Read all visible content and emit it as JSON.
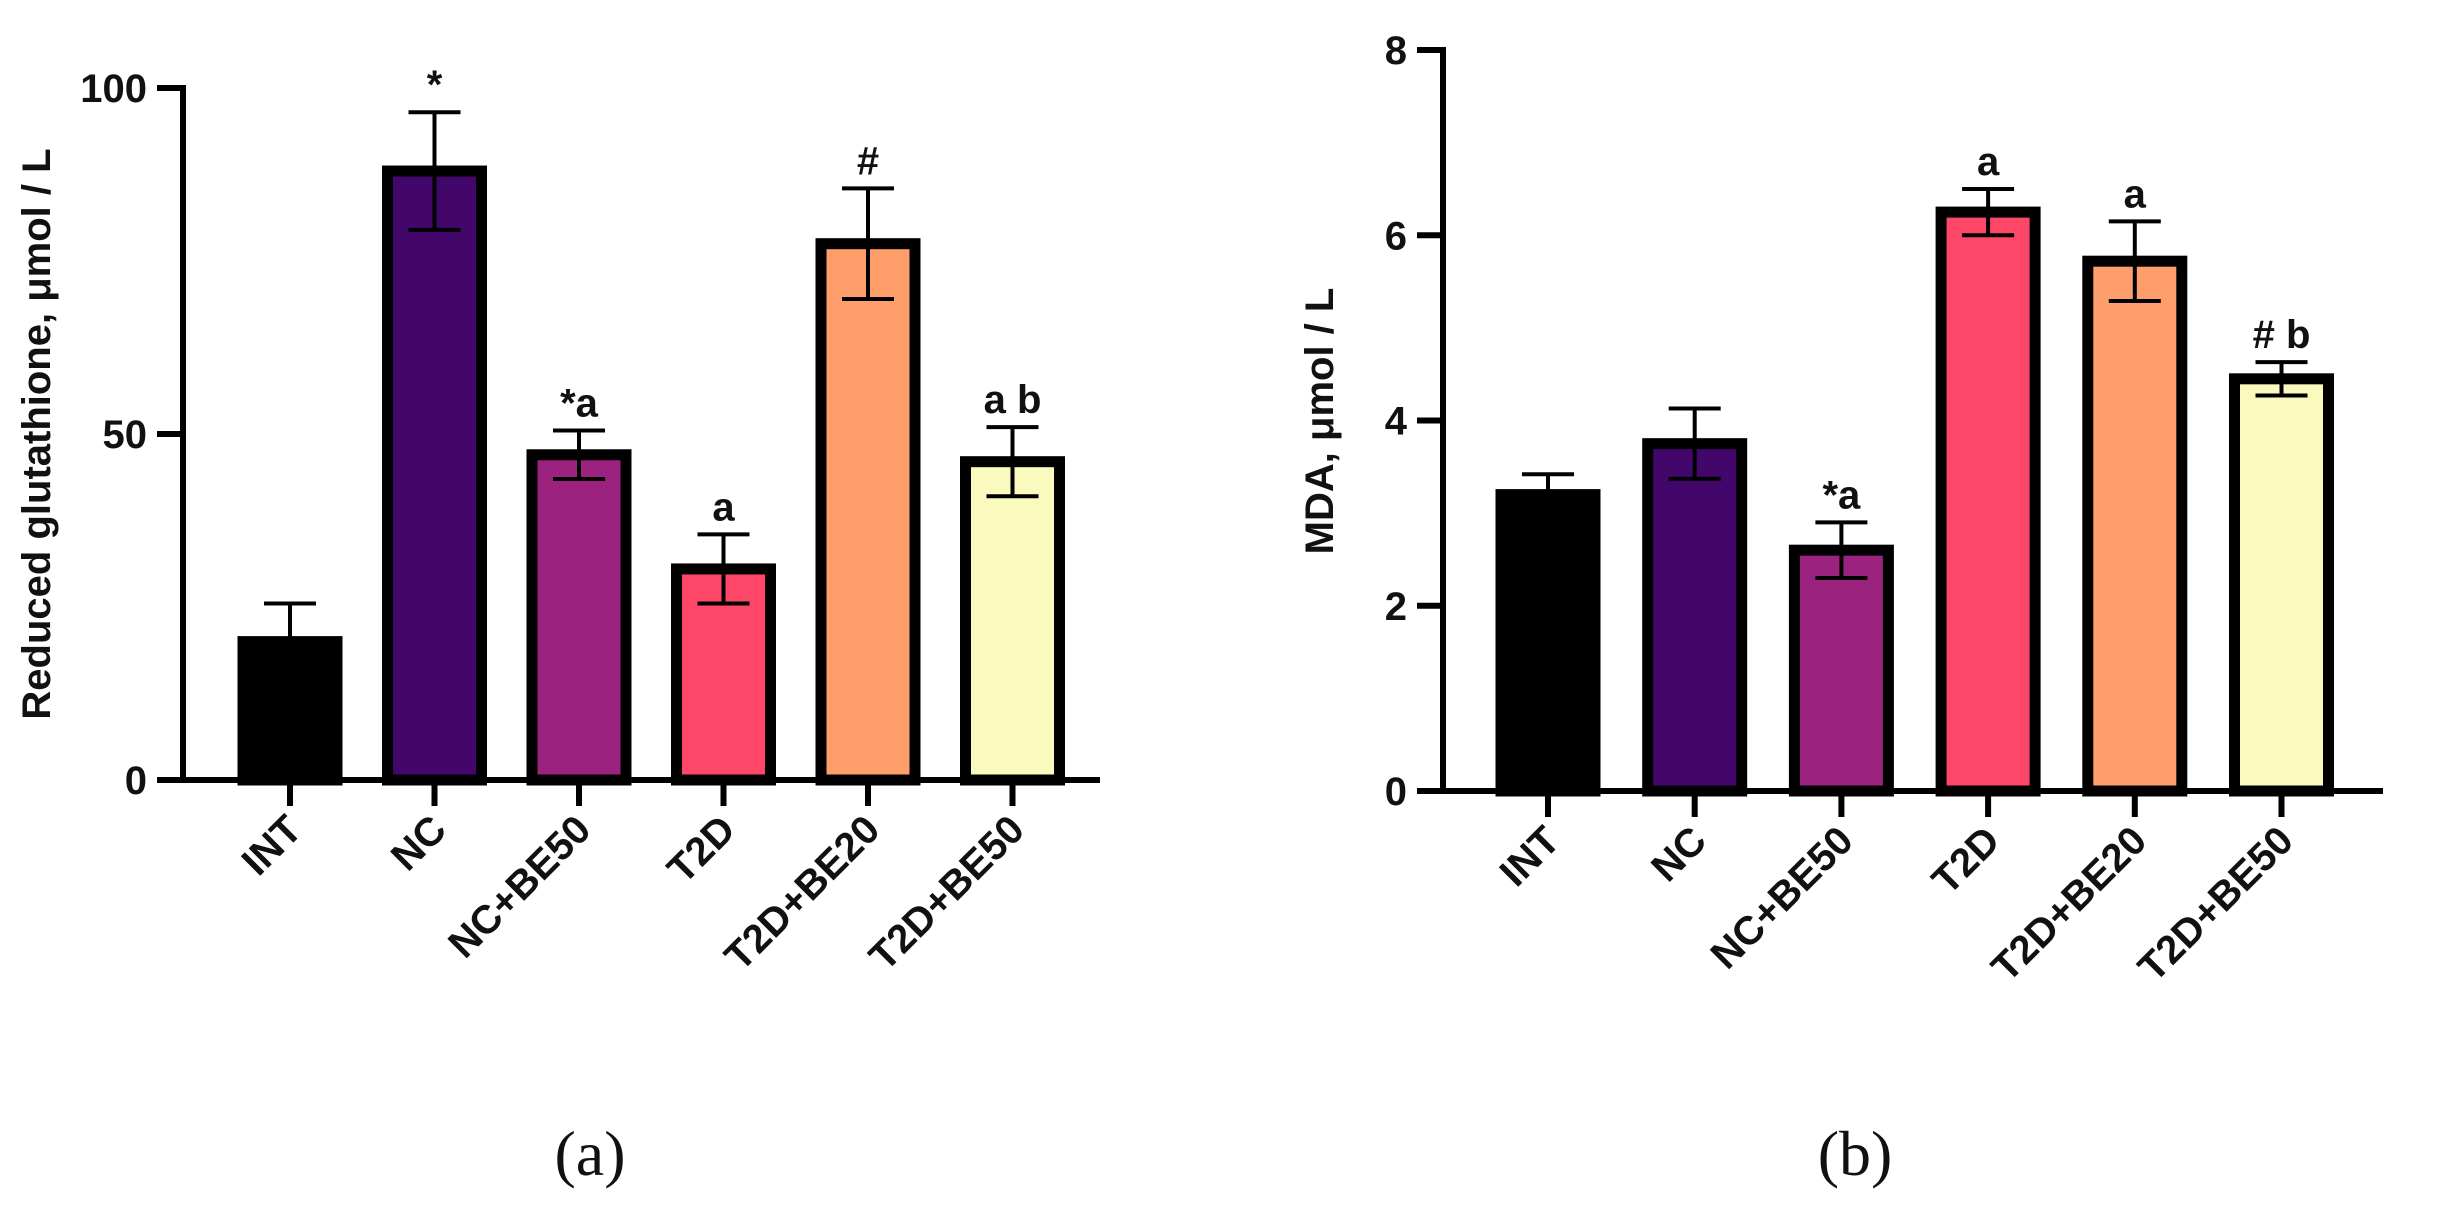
{
  "chart_data": [
    {
      "type": "bar",
      "panel": "(a)",
      "ylabel": "Reduced glutathione, μmol / L",
      "xlabel": "",
      "ylim": [
        0,
        100
      ],
      "yticks": [
        0,
        50,
        100
      ],
      "categories": [
        "INT",
        "NC",
        "NC+BE50",
        "T2D",
        "T2D+BE20",
        "T2D+BE50"
      ],
      "values": [
        20,
        88,
        47,
        30.5,
        77.5,
        46
      ],
      "errors": [
        5.5,
        8.5,
        3.5,
        5,
        8,
        5
      ],
      "annotations": [
        "",
        "*",
        "*a",
        "a",
        "#",
        "a b"
      ],
      "colors": [
        "#000000",
        "#43076b",
        "#9c2280",
        "#fe4669",
        "#fe9f6b",
        "#fafabf"
      ]
    },
    {
      "type": "bar",
      "panel": "(b)",
      "ylabel": "MDA, μmol / L",
      "xlabel": "",
      "ylim": [
        0,
        8
      ],
      "yticks": [
        0,
        2,
        4,
        6,
        8
      ],
      "categories": [
        "INT",
        "NC",
        "NC+BE50",
        "T2D",
        "T2D+BE20",
        "T2D+BE50"
      ],
      "values": [
        3.2,
        3.75,
        2.6,
        6.25,
        5.72,
        4.45
      ],
      "errors": [
        0.22,
        0.38,
        0.3,
        0.25,
        0.43,
        0.18
      ],
      "annotations": [
        "",
        "",
        "*a",
        "a",
        "a",
        "# b"
      ],
      "colors": [
        "#000000",
        "#43076b",
        "#9c2280",
        "#fe4669",
        "#fe9f6b",
        "#fafabf"
      ]
    }
  ]
}
